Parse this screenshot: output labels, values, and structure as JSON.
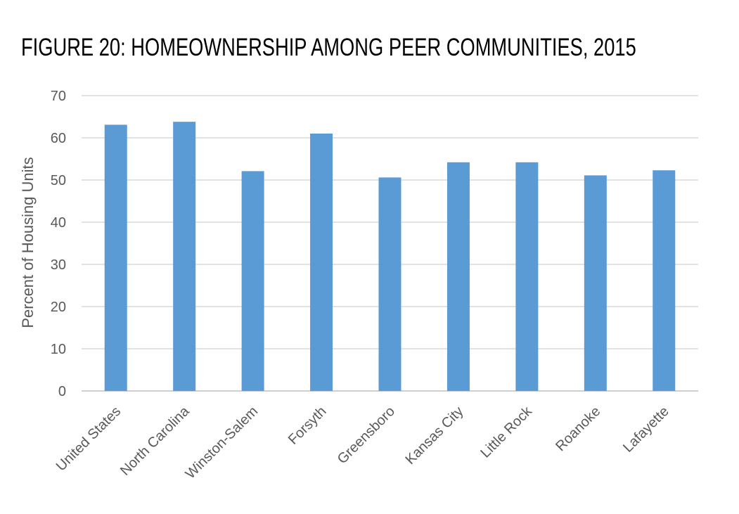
{
  "chart_data": {
    "type": "bar",
    "title": "FIGURE 20: HOMEOWNERSHIP AMONG PEER COMMUNITIES, 2015",
    "xlabel": "",
    "ylabel": "Percent of Housing Units",
    "categories": [
      "United States",
      "North Carolina",
      "Winston-Salem",
      "Forsyth",
      "Greensboro",
      "Kansas City",
      "Little Rock",
      "Roanoke",
      "Lafayette"
    ],
    "values": [
      63.1,
      63.8,
      52.1,
      61.0,
      50.6,
      54.2,
      54.2,
      51.1,
      52.3
    ],
    "ylim": [
      0,
      70
    ],
    "yticks": [
      0,
      10,
      20,
      30,
      40,
      50,
      60,
      70
    ],
    "grid": true,
    "legend": "none",
    "colors": {
      "bar": "#5B9BD5",
      "grid": "#D9D9D9",
      "text": "#595959"
    }
  }
}
